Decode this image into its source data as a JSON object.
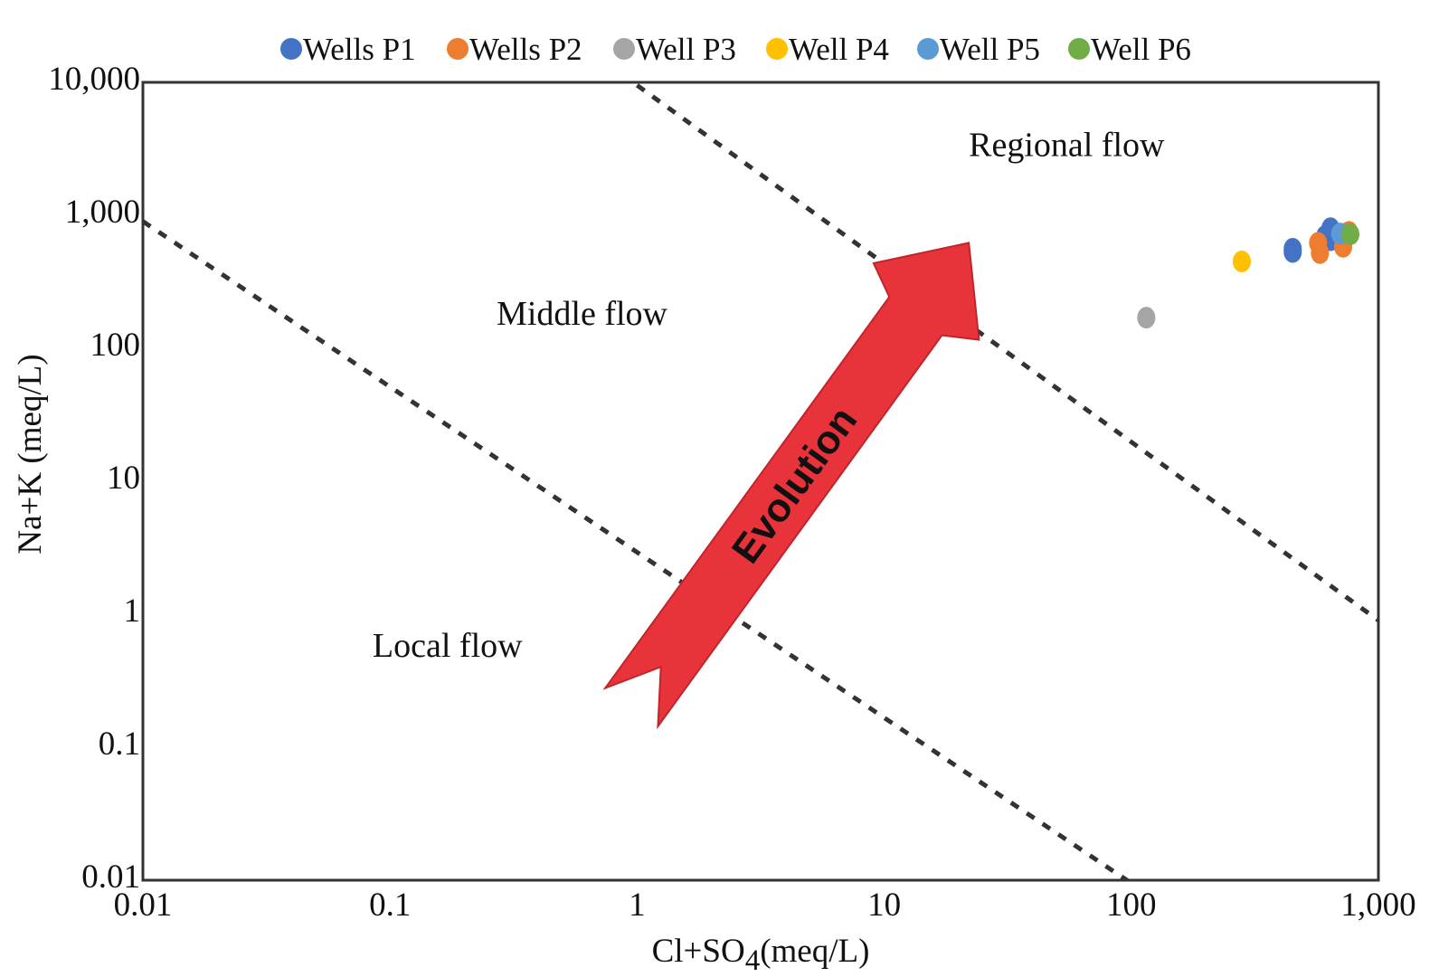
{
  "chart_data": {
    "type": "scatter",
    "scale": "log-log",
    "xlabel": {
      "main": "Cl+SO",
      "sub": "4",
      "unit": "(meq/L)"
    },
    "ylabel": "Na+K (meq/L)",
    "xlim": [
      0.01,
      1000
    ],
    "ylim": [
      0.01,
      10000
    ],
    "x_ticks": [
      {
        "value": 0.01,
        "label": "0.01"
      },
      {
        "value": 0.1,
        "label": "0.1"
      },
      {
        "value": 1,
        "label": "1"
      },
      {
        "value": 10,
        "label": "10"
      },
      {
        "value": 100,
        "label": "100"
      },
      {
        "value": 1000,
        "label": "1,000"
      }
    ],
    "y_ticks": [
      {
        "value": 0.01,
        "label": "0.01"
      },
      {
        "value": 0.1,
        "label": "0.1"
      },
      {
        "value": 1,
        "label": "1"
      },
      {
        "value": 10,
        "label": "10"
      },
      {
        "value": 100,
        "label": "100"
      },
      {
        "value": 1000,
        "label": "1,000"
      },
      {
        "value": 10000,
        "label": "10,000"
      }
    ],
    "grid": false,
    "legend_position": "top",
    "series": [
      {
        "name": "Wells P1",
        "color": "#4472C4",
        "points": [
          [
            450,
            560
          ],
          [
            450,
            530
          ],
          [
            610,
            700
          ],
          [
            640,
            800
          ],
          [
            640,
            650
          ]
        ]
      },
      {
        "name": "Wells P2",
        "color": "#ED7D31",
        "points": [
          [
            570,
            620
          ],
          [
            580,
            520
          ],
          [
            720,
            580
          ],
          [
            760,
            750
          ]
        ]
      },
      {
        "name": "Well P3",
        "color": "#A5A5A5",
        "points": [
          [
            115,
            170
          ]
        ]
      },
      {
        "name": "Well P4",
        "color": "#FFC000",
        "points": [
          [
            280,
            450
          ]
        ]
      },
      {
        "name": "Well P5",
        "color": "#5B9BD5",
        "points": [
          [
            700,
            730
          ]
        ]
      },
      {
        "name": "Well P6",
        "color": "#70AD47",
        "points": [
          [
            770,
            720
          ]
        ]
      }
    ],
    "boundary_lines": [
      {
        "from": [
          0.01,
          900
        ],
        "to": [
          100,
          0.0095
        ],
        "style": "dashed"
      },
      {
        "from": [
          1,
          9500
        ],
        "to": [
          1000,
          0.9
        ],
        "style": "dashed"
      }
    ],
    "annotations": [
      {
        "text": "Regional flow",
        "x": 22,
        "y": 2800
      },
      {
        "text": "Middle flow",
        "x": 0.27,
        "y": 150
      },
      {
        "text": "Local flow",
        "x": 0.085,
        "y": 0.48
      }
    ],
    "arrow": {
      "label": "Evolution",
      "color": "#E8333A",
      "from": [
        0.95,
        0.2
      ],
      "to": [
        22,
        620
      ]
    }
  }
}
